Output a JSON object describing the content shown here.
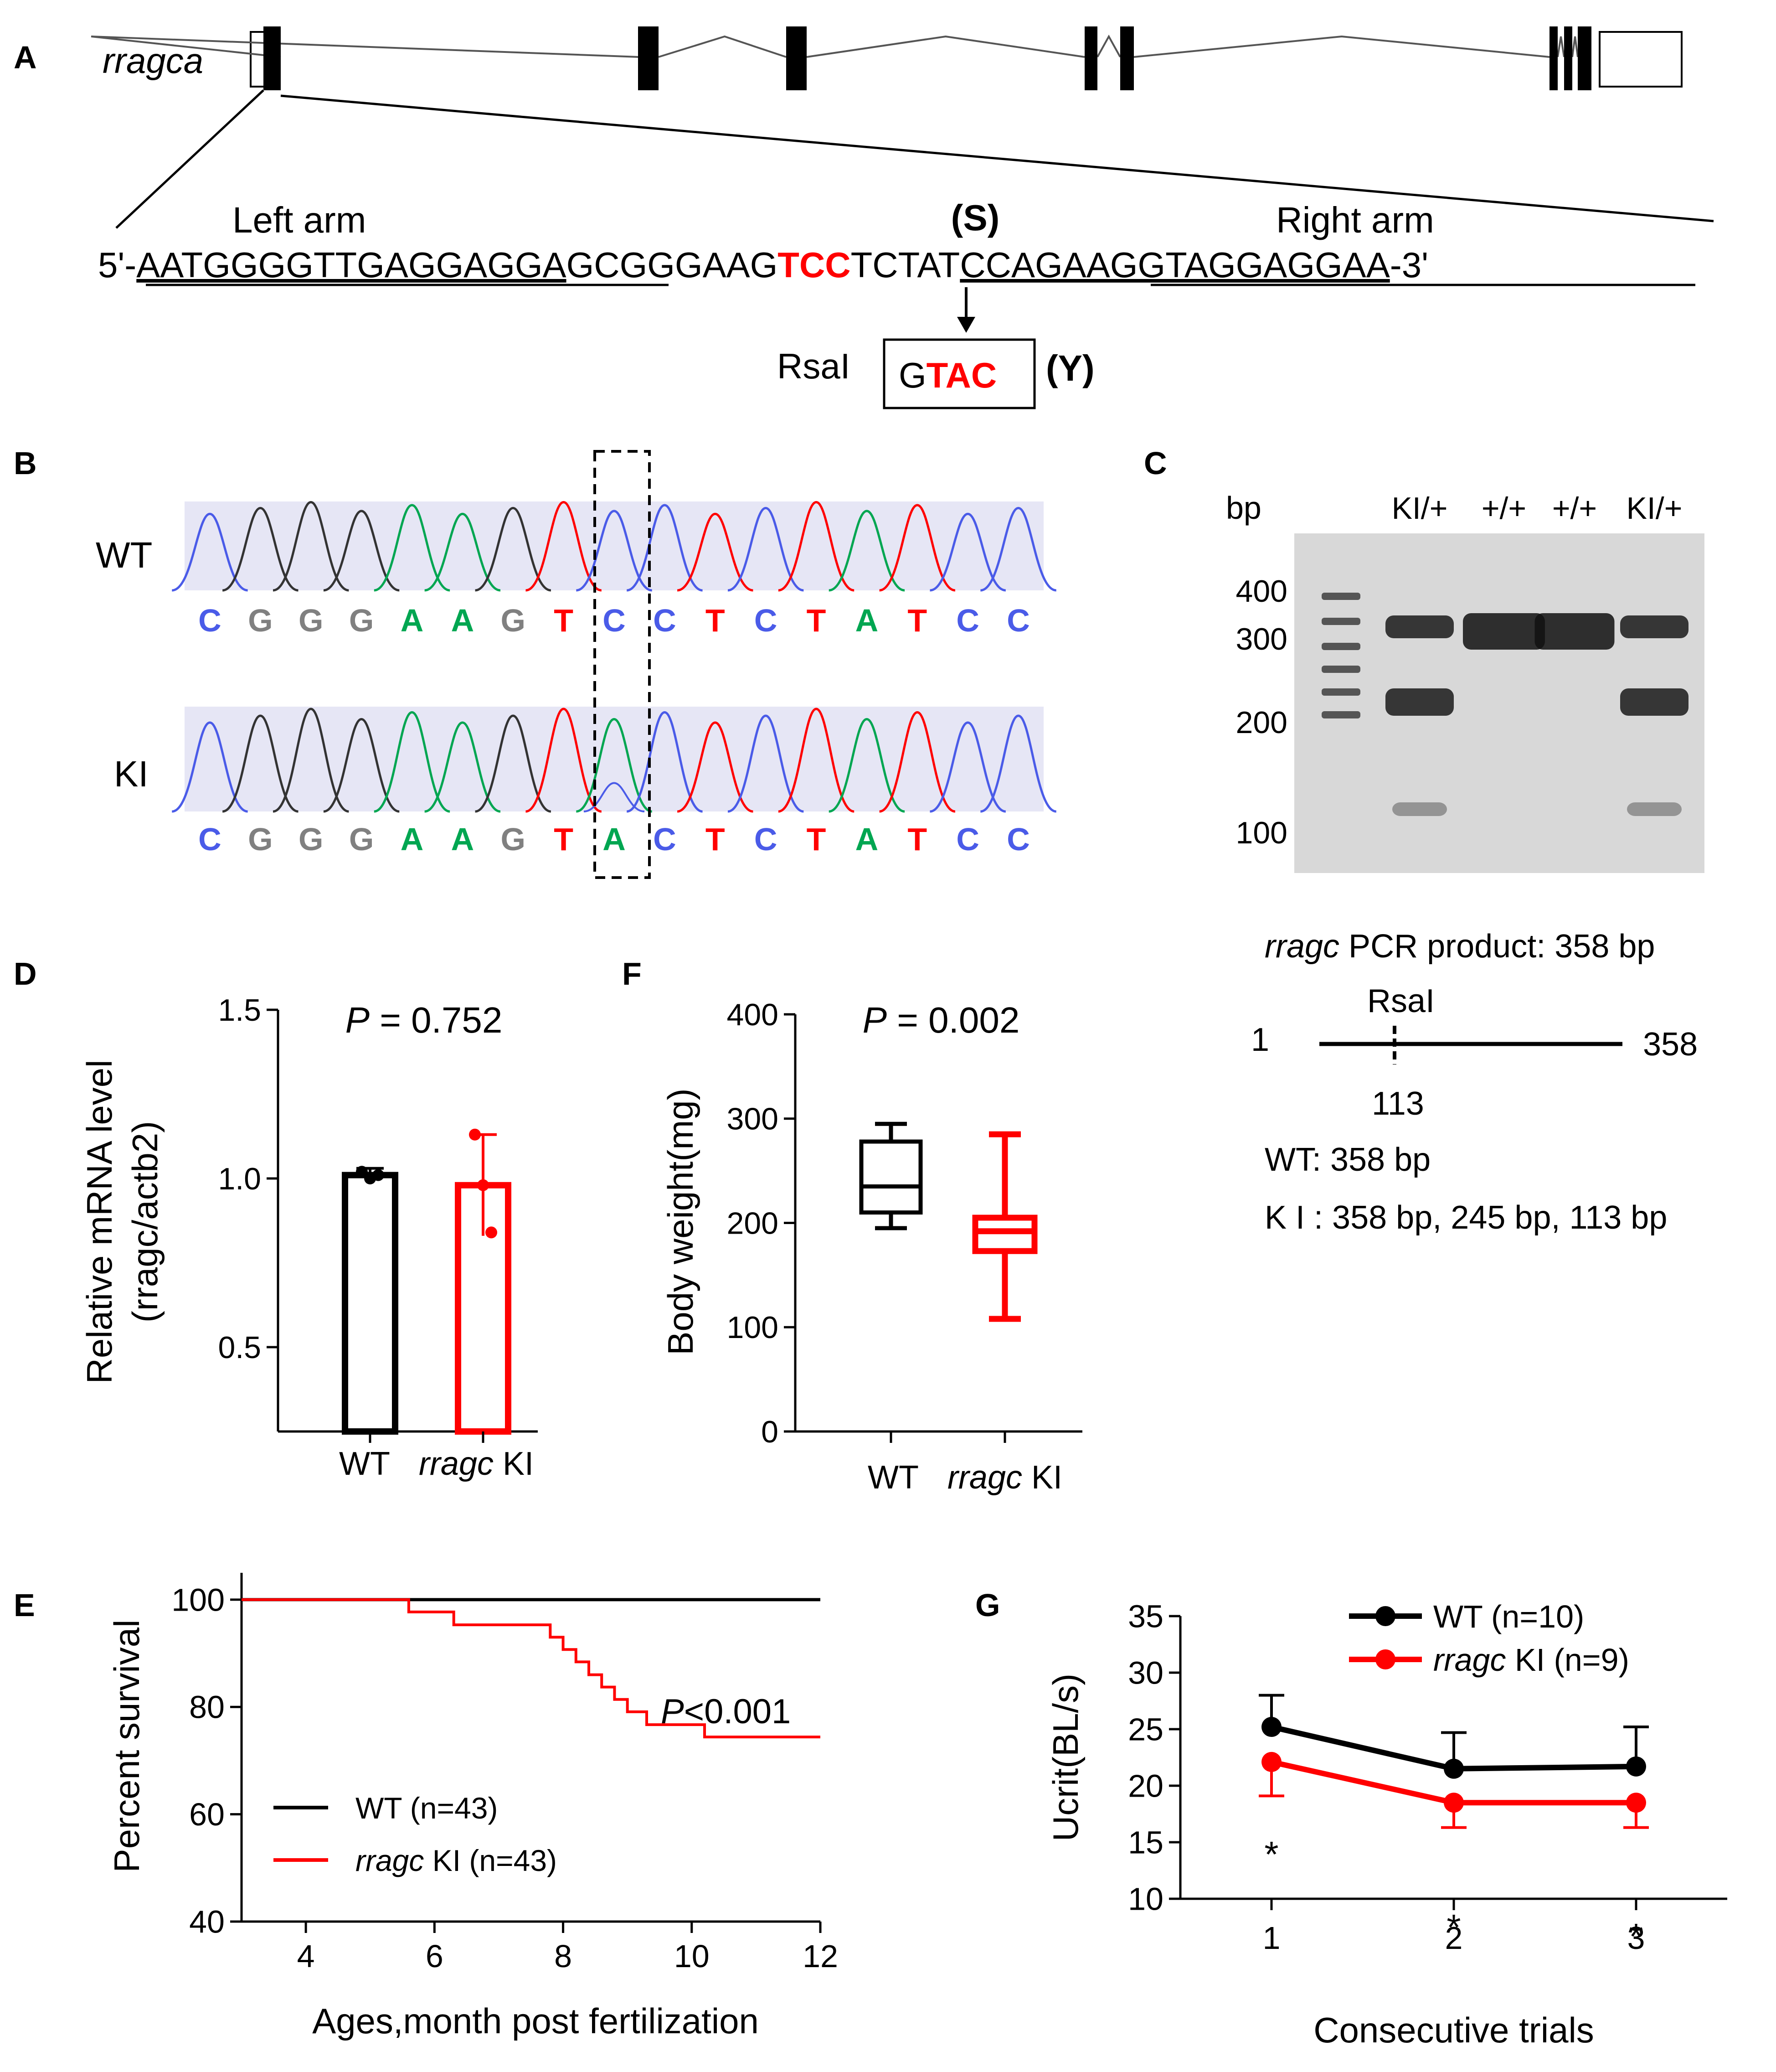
{
  "colors": {
    "wt": "#000000",
    "ki": "#ff0000",
    "seq_c": "#4a5be8",
    "seq_g": "#808080",
    "seq_a": "#00a651",
    "seq_t": "#ff0000",
    "chrom_bg": "#e6e6f5",
    "gel_bg": "#dcdcdc"
  },
  "panels": {
    "A": {
      "letter": "A",
      "gene": "rragca",
      "exons": 10,
      "left_arm_label": "Left arm",
      "right_arm_label": "Right arm",
      "codon_label": "(S)",
      "seq_prefix": "5'-",
      "seq_left_arm": "AATGGGGTTGAGGAGGA",
      "seq_middle": "GCGGGAAG",
      "seq_codon": "TCC",
      "seq_after": "TCTAT",
      "seq_right_arm": "CCAGAAGGTAGGAGGAA",
      "seq_suffix": "-3'",
      "enzyme": "RsaI",
      "site_prefix": "G",
      "site_red": "TAC",
      "aa_new": "(Y)"
    },
    "B": {
      "letter": "B",
      "wt_label": "WT",
      "ki_label": "KI",
      "wt_bases": [
        "C",
        "G",
        "G",
        "G",
        "A",
        "A",
        "G",
        "T",
        "C",
        "C",
        "T",
        "C",
        "T",
        "A",
        "T",
        "C",
        "C"
      ],
      "ki_bases": [
        "C",
        "G",
        "G",
        "G",
        "A",
        "A",
        "G",
        "T",
        "A",
        "C",
        "T",
        "C",
        "T",
        "A",
        "T",
        "C",
        "C"
      ],
      "highlight_index": 8
    },
    "C": {
      "letter": "C",
      "bp_label": "bp",
      "lanes": [
        "KI/+",
        "+/+",
        "+/+",
        "KI/+"
      ],
      "markers": [
        "400",
        "300",
        "200",
        "100"
      ],
      "product_gene": "rragc",
      "product_text": " PCR product:  358 bp",
      "map_start": "1",
      "map_end": "358",
      "map_site": "RsaI",
      "map_site_pos": "113",
      "wt_result": "WT: 358 bp",
      "ki_result": "K I : 358 bp,  245 bp,  113 bp"
    },
    "D": {
      "letter": "D"
    },
    "E": {
      "letter": "E"
    },
    "F": {
      "letter": "F"
    },
    "G": {
      "letter": "G"
    }
  },
  "chart_data": [
    {
      "panel": "D",
      "type": "bar",
      "categories": [
        "WT",
        "rragc KI"
      ],
      "category_parts": [
        [
          "WT",
          ""
        ],
        [
          "rragc",
          " KI"
        ]
      ],
      "values": [
        1.01,
        0.98
      ],
      "errors": [
        0.02,
        0.15
      ],
      "points": [
        [
          1.02,
          1.0,
          1.01
        ],
        [
          1.13,
          0.98,
          0.84
        ]
      ],
      "annotation_italic": "P",
      "annotation_rest": " = 0.752",
      "ylabel": "Relative mRNA level",
      "ylabel2": "(rragc/actb2)",
      "yticks": [
        "0.5",
        "1.0",
        "1.5"
      ],
      "ylim": [
        0.25,
        1.5
      ]
    },
    {
      "panel": "F",
      "type": "box",
      "categories": [
        "WT",
        "rragc KI"
      ],
      "category_parts": [
        [
          "WT",
          ""
        ],
        [
          "rragc",
          " KI"
        ]
      ],
      "boxes": [
        {
          "min": 195,
          "q1": 210,
          "median": 235,
          "q3": 278,
          "max": 295
        },
        {
          "min": 108,
          "q1": 173,
          "median": 192,
          "q3": 205,
          "max": 285
        }
      ],
      "annotation_italic": "P",
      "annotation_rest": " = 0.002",
      "ylabel": "Body weight(mg)",
      "yticks": [
        "0",
        "100",
        "200",
        "300",
        "400"
      ],
      "ylim": [
        0,
        400
      ]
    },
    {
      "panel": "E",
      "type": "line",
      "series": [
        {
          "name": "WT (n=43)",
          "name_italic": "",
          "name_rest": "WT (n=43)",
          "steps": [
            [
              3,
              100
            ],
            [
              12,
              100
            ]
          ]
        },
        {
          "name": "rragc KI (n=43)",
          "name_italic": "rragc",
          "name_rest": " KI (n=43)",
          "steps": [
            [
              3,
              100
            ],
            [
              5.6,
              97.7
            ],
            [
              6.3,
              95.3
            ],
            [
              7.8,
              93.0
            ],
            [
              8.0,
              90.7
            ],
            [
              8.2,
              88.4
            ],
            [
              8.4,
              86.0
            ],
            [
              8.6,
              83.7
            ],
            [
              8.8,
              81.4
            ],
            [
              9.0,
              79.1
            ],
            [
              9.3,
              76.7
            ],
            [
              10.2,
              74.4
            ],
            [
              12,
              74.4
            ]
          ]
        }
      ],
      "annotation_italic": "P",
      "annotation_rest": "<0.001",
      "xlabel": "Ages,month post fertilization",
      "ylabel": "Percent survival",
      "xticks": [
        "4",
        "6",
        "8",
        "10",
        "12"
      ],
      "yticks": [
        "40",
        "60",
        "80",
        "100"
      ],
      "xlim": [
        3,
        12
      ],
      "ylim": [
        40,
        105
      ]
    },
    {
      "panel": "G",
      "type": "line",
      "x": [
        1,
        2,
        3
      ],
      "series": [
        {
          "name": "WT (n=10)",
          "name_italic": "",
          "name_rest": "WT (n=10)",
          "values": [
            25.2,
            21.5,
            21.7
          ],
          "errors": [
            2.8,
            3.2,
            3.5
          ]
        },
        {
          "name": "rragc KI (n=9)",
          "name_italic": "rragc",
          "name_rest": " KI (n=9)",
          "values": [
            22.1,
            18.5,
            18.5
          ],
          "errors": [
            3.0,
            2.2,
            2.2
          ]
        }
      ],
      "significance": [
        "*",
        "*",
        "*"
      ],
      "xlabel": "Consecutive trials",
      "ylabel": "Ucrit(BL/s)",
      "xticks": [
        "1",
        "2",
        "3"
      ],
      "yticks": [
        "10",
        "15",
        "20",
        "25",
        "30",
        "35"
      ],
      "xlim": [
        0.5,
        3.5
      ],
      "ylim": [
        10,
        35
      ],
      "legend": "top-right"
    }
  ]
}
